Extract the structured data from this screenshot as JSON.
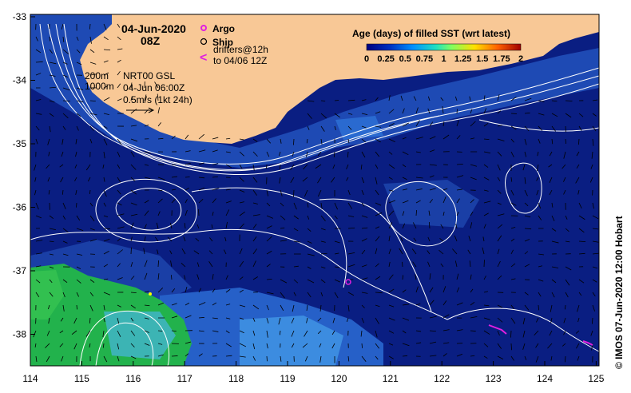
{
  "header": {
    "date": "04-Jun-2020",
    "time": "08Z"
  },
  "legend": {
    "argo_label": "Argo",
    "ship_label": "Ship",
    "drifters_label": "drifters@12h",
    "drifters_sub": "to 04/06 12Z",
    "argo_color": "#e020e0",
    "drifter_color": "#e020e0"
  },
  "colorbar": {
    "title": "Age (days) of filled SST (wrt latest)",
    "ticks": [
      "0",
      "0.25",
      "0.5",
      "0.75",
      "1",
      "1.25",
      "1.5",
      "1.75",
      "2"
    ]
  },
  "isobaths": {
    "a": "200m",
    "b": "1000m"
  },
  "currents": {
    "source": "NRT00 GSL",
    "time": "04-Jun 06:00Z",
    "scale": "0.5m/s (1kt 24h)"
  },
  "credit": "© IMOS 07-Jun-2020 12:00 Hobart",
  "axes": {
    "x_ticks": [
      "114",
      "115",
      "116",
      "117",
      "118",
      "119",
      "120",
      "121",
      "122",
      "123",
      "124",
      "125"
    ],
    "y_ticks": [
      "-33",
      "-34",
      "-35",
      "-36",
      "-37",
      "-38"
    ]
  },
  "colors": {
    "land": "#f8c896",
    "ocean": "#0a1e82",
    "ocean_mid": "#1e4ab4",
    "ocean_light": "#3c8ce0",
    "green": "#22b24c"
  }
}
